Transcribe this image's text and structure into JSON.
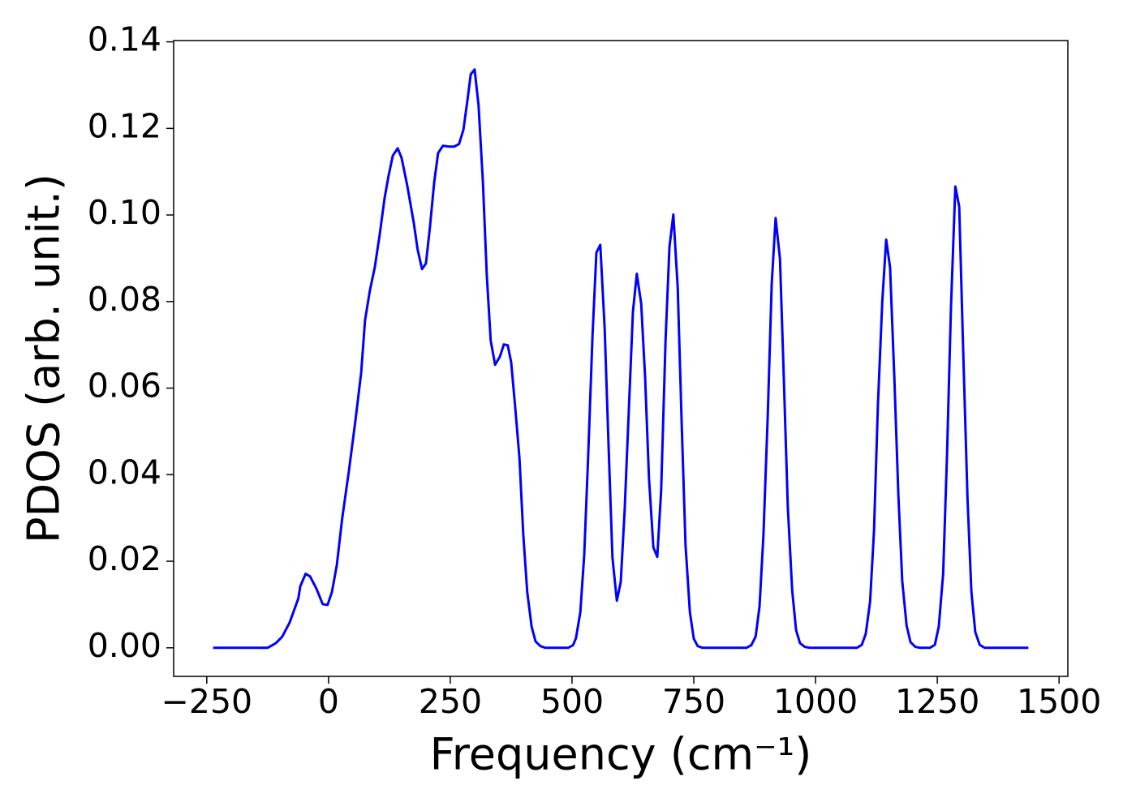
{
  "chart_data": {
    "type": "line",
    "xlabel": "Frequency (cm⁻¹)",
    "ylabel": "PDOS (arb. unit.)",
    "x": [
      -237,
      -125,
      -108,
      -95,
      -80,
      -62,
      -58,
      -47,
      -38,
      -25,
      -12,
      -2,
      7,
      17,
      28,
      42,
      55,
      67,
      75,
      85,
      95,
      105,
      115,
      123,
      132,
      142,
      150,
      162,
      175,
      183,
      192,
      200,
      208,
      217,
      225,
      235,
      247,
      258,
      268,
      277,
      285,
      292,
      300,
      308,
      317,
      325,
      333,
      342,
      352,
      360,
      368,
      375,
      383,
      392,
      400,
      408,
      417,
      425,
      435,
      445,
      492,
      502,
      508,
      517,
      525,
      533,
      542,
      550,
      558,
      567,
      575,
      583,
      592,
      600,
      608,
      617,
      625,
      633,
      642,
      650,
      658,
      667,
      675,
      683,
      692,
      700,
      708,
      717,
      725,
      733,
      742,
      750,
      758,
      768,
      858,
      868,
      877,
      885,
      893,
      902,
      910,
      918,
      927,
      935,
      943,
      952,
      960,
      968,
      978,
      988,
      1085,
      1095,
      1103,
      1112,
      1120,
      1128,
      1137,
      1145,
      1153,
      1162,
      1170,
      1178,
      1187,
      1195,
      1205,
      1215,
      1235,
      1245,
      1253,
      1262,
      1270,
      1278,
      1287,
      1295,
      1303,
      1312,
      1320,
      1328,
      1337,
      1347,
      1437
    ],
    "series": [
      {
        "color": "#0000ff",
        "values": [
          0,
          0,
          0.0011,
          0.0026,
          0.0058,
          0.0114,
          0.0142,
          0.0171,
          0.0165,
          0.0137,
          0.0101,
          0.0099,
          0.0129,
          0.0191,
          0.0298,
          0.041,
          0.0523,
          0.0635,
          0.0757,
          0.0826,
          0.0879,
          0.0954,
          0.1038,
          0.1089,
          0.1137,
          0.1154,
          0.1132,
          0.1066,
          0.0982,
          0.092,
          0.0875,
          0.0888,
          0.0969,
          0.1076,
          0.1143,
          0.116,
          0.1158,
          0.1158,
          0.1164,
          0.1197,
          0.1263,
          0.1325,
          0.1336,
          0.1254,
          0.1076,
          0.086,
          0.071,
          0.0654,
          0.0673,
          0.0701,
          0.0699,
          0.066,
          0.056,
          0.0439,
          0.026,
          0.0129,
          0.0049,
          0.0015,
          0.0004,
          0,
          0,
          0.0006,
          0.0022,
          0.0082,
          0.0214,
          0.0439,
          0.072,
          0.0913,
          0.0931,
          0.0738,
          0.0467,
          0.0208,
          0.0109,
          0.0152,
          0.0317,
          0.056,
          0.0776,
          0.0864,
          0.0795,
          0.0626,
          0.0392,
          0.0232,
          0.021,
          0.0364,
          0.071,
          0.0926,
          0.1001,
          0.0832,
          0.0523,
          0.0238,
          0.0082,
          0.0021,
          0.0004,
          0,
          0,
          0.0006,
          0.0026,
          0.0096,
          0.026,
          0.0542,
          0.0841,
          0.0993,
          0.0898,
          0.0617,
          0.0326,
          0.0133,
          0.0041,
          0.0011,
          0.0002,
          0,
          0,
          0.0007,
          0.0032,
          0.0107,
          0.027,
          0.056,
          0.08,
          0.0943,
          0.0879,
          0.0617,
          0.0354,
          0.0154,
          0.0051,
          0.0013,
          0.0002,
          0,
          0,
          0.0007,
          0.0049,
          0.0171,
          0.0448,
          0.0785,
          0.1066,
          0.1019,
          0.0692,
          0.0345,
          0.0129,
          0.0036,
          0.0007,
          0,
          0
        ]
      }
    ],
    "xlim": [
      -318,
      1518
    ],
    "ylim": [
      -0.0066,
      0.1403
    ],
    "xticks": [
      {
        "value": -250,
        "label": "−250"
      },
      0,
      250,
      500,
      750,
      1000,
      1250,
      1500
    ],
    "yticks": [
      {
        "value": 0,
        "label": "0.00"
      },
      {
        "value": 0.02,
        "label": "0.02"
      },
      {
        "value": 0.04,
        "label": "0.04"
      },
      {
        "value": 0.06,
        "label": "0.06"
      },
      {
        "value": 0.08,
        "label": "0.08"
      },
      {
        "value": 0.1,
        "label": "0.10"
      },
      {
        "value": 0.12,
        "label": "0.12"
      },
      {
        "value": 0.14,
        "label": "0.14"
      }
    ]
  }
}
